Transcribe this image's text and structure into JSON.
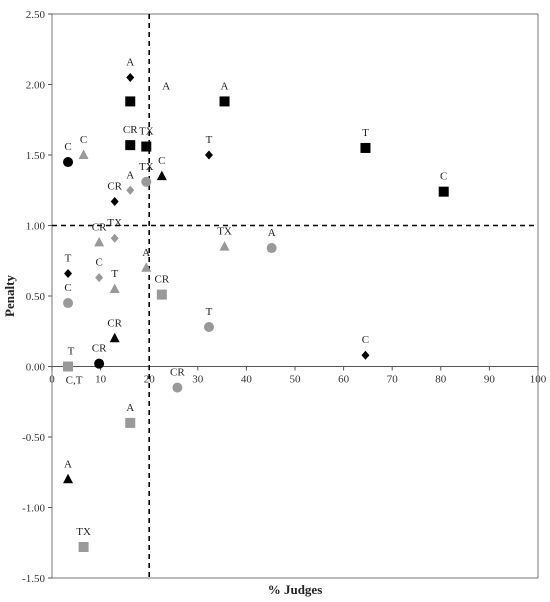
{
  "chart_data": {
    "type": "scatter",
    "title": "",
    "xlabel": "% Judges",
    "ylabel": "Penalty",
    "xlim": [
      0,
      100
    ],
    "ylim": [
      -1.5,
      2.5
    ],
    "x_ticks": [
      0,
      10,
      20,
      30,
      40,
      50,
      60,
      70,
      80,
      90,
      100
    ],
    "y_ticks": [
      -1.5,
      -1.0,
      -0.5,
      0.0,
      0.5,
      1.0,
      1.5,
      2.0,
      2.5
    ],
    "y_tick_labels": [
      "-1.50",
      "-1.00",
      "-0.50",
      "0.00",
      "0.50",
      "1.00",
      "1.50",
      "2.00",
      "2.50"
    ],
    "reference_lines": {
      "x": 20,
      "y": 1.0
    },
    "grid": false,
    "legend": "none",
    "colors": {
      "black": "#000000",
      "gray": "#999999"
    },
    "points": [
      {
        "label": "C",
        "x": 3.3,
        "y": 1.45,
        "marker": "circle",
        "color": "black"
      },
      {
        "label": "CR",
        "x": 9.7,
        "y": 0.02,
        "marker": "circle",
        "color": "black"
      },
      {
        "label": "C",
        "x": 3.3,
        "y": 0.45,
        "marker": "circle",
        "color": "gray"
      },
      {
        "label": "TX",
        "x": 19.4,
        "y": 1.31,
        "marker": "circle",
        "color": "gray"
      },
      {
        "label": "CR",
        "x": 25.8,
        "y": -0.15,
        "marker": "circle",
        "color": "gray"
      },
      {
        "label": "T",
        "x": 32.3,
        "y": 0.28,
        "marker": "circle",
        "color": "gray"
      },
      {
        "label": "A",
        "x": 45.2,
        "y": 0.84,
        "marker": "circle",
        "color": "gray"
      },
      {
        "label": "A",
        "x": 16.1,
        "y": 1.88,
        "marker": "square",
        "color": "black",
        "label_dx": 36,
        "label_dy": -12
      },
      {
        "label": "CR",
        "x": 16.1,
        "y": 1.57,
        "marker": "square",
        "color": "black"
      },
      {
        "label": "TX",
        "x": 19.4,
        "y": 1.56,
        "marker": "square",
        "color": "black"
      },
      {
        "label": "A",
        "x": 35.5,
        "y": 1.88,
        "marker": "square",
        "color": "black"
      },
      {
        "label": "T",
        "x": 64.5,
        "y": 1.55,
        "marker": "square",
        "color": "black"
      },
      {
        "label": "C",
        "x": 80.6,
        "y": 1.24,
        "marker": "square",
        "color": "black"
      },
      {
        "label": "T",
        "x": 3.3,
        "y": 0.0,
        "marker": "square",
        "color": "gray",
        "label_dx": 3,
        "label_dy": -12
      },
      {
        "label": "CR",
        "x": 22.6,
        "y": 0.51,
        "marker": "square",
        "color": "gray"
      },
      {
        "label": "A",
        "x": 16.1,
        "y": -0.4,
        "marker": "square",
        "color": "gray"
      },
      {
        "label": "TX",
        "x": 6.5,
        "y": -1.28,
        "marker": "square",
        "color": "gray"
      },
      {
        "label": "C",
        "x": 22.6,
        "y": 1.35,
        "marker": "triangle",
        "color": "black"
      },
      {
        "label": "CR",
        "x": 12.9,
        "y": 0.2,
        "marker": "triangle",
        "color": "black"
      },
      {
        "label": "A",
        "x": 3.3,
        "y": -0.8,
        "marker": "triangle",
        "color": "black"
      },
      {
        "label": "C",
        "x": 6.5,
        "y": 1.5,
        "marker": "triangle",
        "color": "gray"
      },
      {
        "label": "CR",
        "x": 9.7,
        "y": 0.88,
        "marker": "triangle",
        "color": "gray"
      },
      {
        "label": "T",
        "x": 12.9,
        "y": 0.55,
        "marker": "triangle",
        "color": "gray"
      },
      {
        "label": "A",
        "x": 19.4,
        "y": 0.7,
        "marker": "triangle",
        "color": "gray"
      },
      {
        "label": "TX",
        "x": 35.5,
        "y": 0.85,
        "marker": "triangle",
        "color": "gray"
      },
      {
        "label": "A",
        "x": 16.1,
        "y": 2.05,
        "marker": "diamond",
        "color": "black"
      },
      {
        "label": "CR",
        "x": 12.9,
        "y": 1.17,
        "marker": "diamond",
        "color": "black"
      },
      {
        "label": "T",
        "x": 32.3,
        "y": 1.5,
        "marker": "diamond",
        "color": "black"
      },
      {
        "label": "T",
        "x": 3.3,
        "y": 0.66,
        "marker": "diamond",
        "color": "black"
      },
      {
        "label": "C",
        "x": 64.5,
        "y": 0.08,
        "marker": "diamond",
        "color": "black"
      },
      {
        "label": "A",
        "x": 16.1,
        "y": 1.25,
        "marker": "diamond",
        "color": "gray"
      },
      {
        "label": "TX",
        "x": 12.9,
        "y": 0.91,
        "marker": "diamond",
        "color": "gray"
      },
      {
        "label": "C",
        "x": 9.7,
        "y": 0.63,
        "marker": "diamond",
        "color": "gray"
      }
    ],
    "annotations": [
      {
        "text": "C,T",
        "x": 3.3,
        "y": 0.0
      }
    ]
  }
}
